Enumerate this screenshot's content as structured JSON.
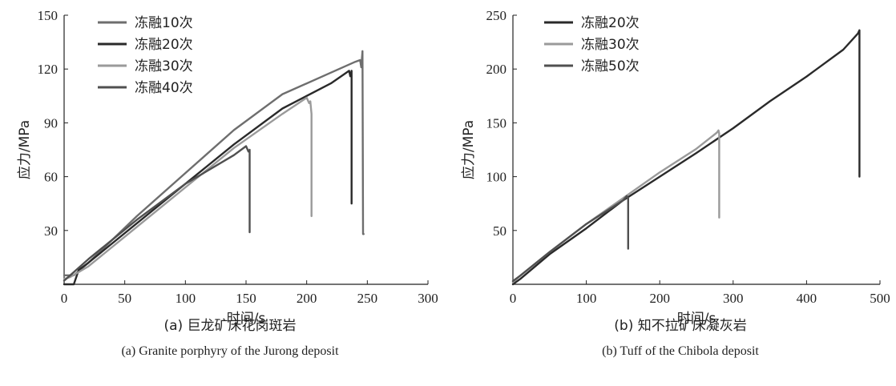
{
  "chart_data": [
    {
      "type": "line",
      "caption_cn": "(a) 巨龙矿床花岗斑岩",
      "caption_en": "(a) Granite porphyry of the Jurong deposit",
      "xlabel": "时间/s",
      "ylabel": "应力/MPa",
      "xlim": [
        0,
        300
      ],
      "ylim": [
        0,
        150
      ],
      "xticks": [
        0,
        50,
        100,
        150,
        200,
        250,
        300
      ],
      "yticks": [
        30,
        60,
        90,
        120,
        150
      ],
      "grid": false,
      "legend": "top-left",
      "series": [
        {
          "name": "冻融10次",
          "color": "#6e6e6e",
          "x": [
            0,
            8,
            20,
            60,
            100,
            140,
            180,
            220,
            240,
            244,
            245,
            246,
            246.5,
            247
          ],
          "y": [
            5,
            5,
            12,
            38,
            62,
            86,
            106,
            118,
            124,
            125,
            121,
            130,
            28,
            28
          ]
        },
        {
          "name": "冻融20次",
          "color": "#2a2a2a",
          "x": [
            0,
            8,
            12,
            20,
            60,
            100,
            140,
            180,
            220,
            235,
            236,
            237,
            237
          ],
          "y": [
            0,
            0,
            8,
            12,
            34,
            56,
            78,
            98,
            112,
            119,
            116,
            119,
            45
          ]
        },
        {
          "name": "冻融30次",
          "color": "#9a9a9a",
          "x": [
            0,
            5,
            20,
            60,
            100,
            140,
            180,
            200,
            202,
            203,
            204,
            204
          ],
          "y": [
            3,
            4,
            10,
            32,
            54,
            76,
            95,
            104,
            101,
            102,
            95,
            38
          ]
        },
        {
          "name": "冻融40次",
          "color": "#505050",
          "x": [
            0,
            5,
            10,
            20,
            60,
            100,
            140,
            150,
            152,
            153,
            153
          ],
          "y": [
            2,
            5,
            8,
            14,
            36,
            56,
            72,
            77,
            74,
            75,
            29
          ]
        }
      ]
    },
    {
      "type": "line",
      "caption_cn": "(b) 知不拉矿床凝灰岩",
      "caption_en": "(b) Tuff of the Chibola deposit",
      "xlabel": "时间/s",
      "ylabel": "应力/MPa",
      "xlim": [
        0,
        500
      ],
      "ylim": [
        0,
        250
      ],
      "xticks": [
        0,
        100,
        200,
        300,
        400,
        500
      ],
      "yticks": [
        50,
        100,
        150,
        200,
        250
      ],
      "grid": false,
      "legend": "top-left",
      "series": [
        {
          "name": "冻融20次",
          "color": "#2a2a2a",
          "x": [
            0,
            10,
            50,
            100,
            150,
            200,
            250,
            300,
            350,
            400,
            450,
            470,
            472,
            472
          ],
          "y": [
            0,
            5,
            28,
            52,
            78,
            100,
            122,
            145,
            170,
            193,
            218,
            233,
            236,
            100
          ]
        },
        {
          "name": "冻融30次",
          "color": "#9a9a9a",
          "x": [
            0,
            10,
            50,
            100,
            150,
            200,
            250,
            278,
            280,
            281,
            281
          ],
          "y": [
            2,
            8,
            30,
            56,
            80,
            104,
            126,
            141,
            143,
            140,
            62
          ]
        },
        {
          "name": "冻融50次",
          "color": "#505050",
          "x": [
            0,
            10,
            50,
            100,
            150,
            155,
            157,
            157
          ],
          "y": [
            3,
            8,
            30,
            56,
            78,
            82,
            80,
            33
          ]
        }
      ]
    }
  ]
}
